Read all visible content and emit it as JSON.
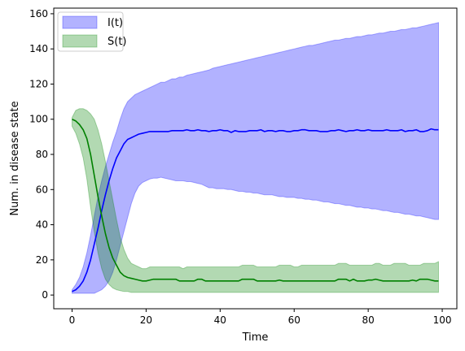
{
  "chart_data": {
    "type": "line",
    "title": "",
    "xlabel": "Time",
    "ylabel": "Num. in disease state",
    "xlim": [
      -4.95,
      103.95
    ],
    "ylim": [
      -7.8,
      163.2
    ],
    "xticks": [
      0,
      20,
      40,
      60,
      80,
      100
    ],
    "yticks": [
      0,
      20,
      40,
      60,
      80,
      100,
      120,
      140,
      160
    ],
    "grid": false,
    "legend_position": "top-left",
    "x_start": 0,
    "x_step": 1,
    "series": [
      {
        "name": "I(t)",
        "color": "#0000ff",
        "fill_color": "#0000ff",
        "fill_opacity": 0.3,
        "mean": [
          2,
          3,
          5,
          8,
          13,
          20,
          29,
          38,
          48,
          57,
          65,
          72,
          78,
          82,
          86,
          88.5,
          89.5,
          90.5,
          91.5,
          92,
          92.5,
          93,
          93,
          93,
          93,
          93,
          93,
          93.5,
          93.5,
          93.5,
          93.5,
          94,
          93.5,
          93.5,
          94,
          93.5,
          93.5,
          93,
          93.5,
          93.5,
          94,
          93.5,
          93.5,
          92.5,
          93.5,
          93,
          93,
          93,
          93.5,
          93.5,
          93.5,
          94,
          93,
          93.5,
          93.5,
          93,
          93.5,
          93.5,
          93,
          93,
          93.5,
          93.5,
          94,
          94,
          93.5,
          93.5,
          93.5,
          93,
          93,
          93,
          93.5,
          93.5,
          94,
          93.5,
          93,
          93.5,
          93.5,
          94,
          93.5,
          93.5,
          94,
          93.5,
          93.5,
          93.5,
          93.5,
          94,
          93.5,
          93.5,
          93.5,
          94,
          93,
          93.5,
          93.5,
          94,
          93,
          93,
          93.5,
          94.5,
          94,
          94
        ],
        "lower": [
          1,
          1,
          1,
          1,
          1,
          1,
          1,
          2,
          3,
          5,
          8,
          13,
          20,
          28,
          36,
          44,
          52,
          58,
          62,
          64,
          65,
          66,
          66.5,
          66.5,
          67,
          66.5,
          66,
          65.5,
          65,
          65,
          65,
          64.5,
          64.5,
          64,
          63.5,
          63,
          62,
          61,
          61,
          60.5,
          60.5,
          60.5,
          60,
          60,
          59.5,
          59,
          59,
          58.5,
          58.5,
          58,
          58,
          57.5,
          57,
          57,
          57,
          56.5,
          56,
          56,
          55.5,
          55.5,
          55.5,
          55,
          55,
          54.5,
          54.5,
          54,
          54,
          53.5,
          53,
          53,
          52.5,
          52,
          52,
          51.5,
          51,
          51,
          50.5,
          50,
          50,
          49.5,
          49.5,
          49,
          49,
          48.5,
          48,
          48,
          47.5,
          47,
          47,
          46.5,
          46,
          46,
          45.5,
          45,
          45,
          44.5,
          44,
          43.5,
          43,
          43
        ],
        "upper": [
          3,
          6,
          10,
          16,
          24,
          34,
          45,
          56,
          65,
          73,
          80,
          87,
          93,
          100,
          106,
          110,
          112,
          114,
          115,
          116,
          117,
          118,
          119,
          120,
          121,
          121,
          122,
          123,
          123,
          124,
          124,
          125,
          125.5,
          126,
          126.5,
          127,
          127.5,
          128,
          129,
          129.5,
          130,
          130.5,
          131,
          131.5,
          132,
          132.5,
          133,
          133.5,
          134,
          134.5,
          135,
          135.5,
          136,
          136.5,
          137,
          137.5,
          138,
          138.5,
          139,
          139.5,
          140,
          140.5,
          141,
          141.5,
          142,
          142,
          142.5,
          143,
          143.5,
          144,
          144.5,
          145,
          145,
          145.5,
          146,
          146,
          146.5,
          147,
          147,
          147.5,
          148,
          148,
          148.5,
          149,
          149,
          149.5,
          150,
          150,
          150.5,
          151,
          151,
          151.5,
          152,
          152,
          152.5,
          153,
          153.5,
          154,
          154.5,
          155
        ]
      },
      {
        "name": "S(t)",
        "color": "#008000",
        "fill_color": "#008000",
        "fill_opacity": 0.3,
        "mean": [
          100,
          99,
          97,
          94,
          89,
          80,
          68,
          56,
          45,
          35,
          27,
          21,
          17,
          13,
          11,
          10,
          9.5,
          9,
          8.5,
          8,
          8,
          8.5,
          9,
          9,
          9,
          9,
          9,
          9,
          9,
          8,
          8,
          8,
          8,
          8,
          9,
          9,
          8,
          8,
          8,
          8,
          8,
          8,
          8,
          8,
          8,
          8,
          9,
          9,
          9,
          9,
          8,
          8,
          8,
          8,
          8,
          8,
          8.5,
          8,
          8,
          8,
          8,
          8,
          8,
          8,
          8,
          8,
          8,
          8,
          8,
          8,
          8,
          8,
          9,
          9,
          9,
          8,
          9,
          8,
          8,
          8,
          8.5,
          8.5,
          9,
          8.5,
          8,
          8,
          8,
          8,
          8,
          8,
          8,
          8,
          8.5,
          8,
          9,
          9,
          9,
          8.5,
          8,
          8
        ],
        "lower": [
          96,
          92,
          86,
          78,
          66,
          50,
          36,
          24,
          15,
          9,
          6,
          4,
          3,
          2.5,
          2,
          2,
          1.5,
          1.5,
          1.5,
          1.5,
          1.5,
          1.5,
          1.5,
          1.5,
          1.5,
          1.5,
          1.5,
          1.5,
          1.5,
          1.5,
          1.5,
          1.5,
          1.5,
          1.5,
          1.5,
          1.5,
          1.5,
          1.5,
          1.5,
          1.5,
          1.5,
          1.5,
          1.5,
          1.5,
          1.5,
          1.5,
          1.5,
          1.5,
          1.5,
          1.5,
          1.5,
          1.5,
          1.5,
          1.5,
          1.5,
          1.5,
          1.5,
          1.5,
          1.5,
          1.5,
          1.5,
          1.5,
          1.5,
          1.5,
          1.5,
          1.5,
          1.5,
          1.5,
          1.5,
          1.5,
          1.5,
          1.5,
          1.5,
          1.5,
          1.5,
          1.5,
          1.5,
          1.5,
          1.5,
          1.5,
          1.5,
          1.5,
          1.5,
          1.5,
          1.5,
          1.5,
          1.5,
          1.5,
          1.5,
          1.5,
          1.5,
          1.5,
          1.5,
          1.5,
          1.5,
          1.5,
          1.5,
          1.5,
          1.5,
          1.5
        ],
        "upper": [
          101,
          105,
          106,
          106,
          105,
          103,
          100,
          94,
          86,
          76,
          65,
          54,
          43,
          33,
          26,
          21,
          18,
          17,
          16,
          15,
          15,
          16,
          16,
          16,
          16,
          16,
          16,
          16,
          16,
          16,
          15,
          16,
          16,
          16,
          16,
          16,
          16,
          16,
          16,
          16,
          16,
          16,
          16,
          16,
          16,
          16,
          17,
          17,
          17,
          17,
          16,
          16,
          16,
          16,
          16,
          16,
          17,
          17,
          17,
          17,
          16,
          16,
          17,
          17,
          17,
          17,
          17,
          17,
          17,
          17,
          17,
          17,
          18,
          18,
          18,
          17,
          17,
          17,
          17,
          17,
          17,
          17,
          18,
          18,
          17,
          17,
          17,
          18,
          18,
          18,
          18,
          17,
          17,
          17,
          17,
          18,
          18,
          18,
          18,
          19
        ]
      }
    ]
  }
}
